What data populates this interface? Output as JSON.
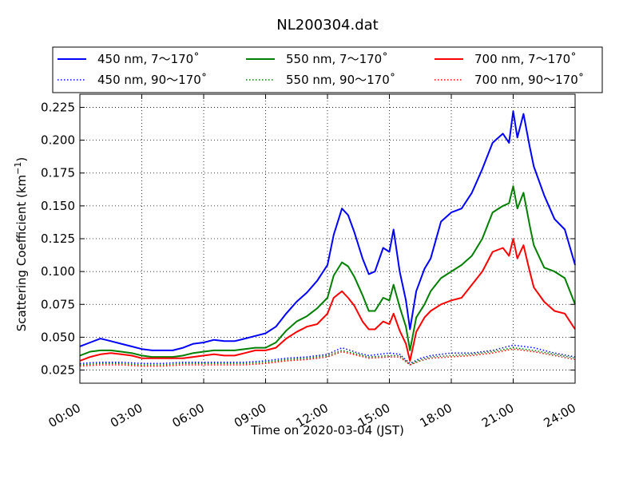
{
  "chart_data": {
    "type": "line",
    "title": "NL200304.dat",
    "xlabel": "Time on 2020-03-04 (JST)",
    "ylabel_main": "Scattering Coefficient (km",
    "ylabel_sup": "−1",
    "ylabel_end": ")",
    "xlim": [
      0,
      24
    ],
    "ylim": [
      0.015,
      0.235
    ],
    "x_ticks": [
      0,
      3,
      6,
      9,
      12,
      15,
      18,
      21,
      24
    ],
    "x_tick_labels": [
      "00:00",
      "03:00",
      "06:00",
      "09:00",
      "12:00",
      "15:00",
      "18:00",
      "21:00",
      "24:00"
    ],
    "y_ticks": [
      0.025,
      0.05,
      0.075,
      0.1,
      0.125,
      0.15,
      0.175,
      0.2,
      0.225
    ],
    "y_tick_labels": [
      "0.025",
      "0.050",
      "0.075",
      "0.100",
      "0.125",
      "0.150",
      "0.175",
      "0.200",
      "0.225"
    ],
    "grid": true,
    "legend_position": "top",
    "series": [
      {
        "name": "450 nm, 7～170˚",
        "color": "#0000ff",
        "style": "solid",
        "x": [
          0,
          0.5,
          1,
          1.5,
          2,
          2.5,
          3,
          3.5,
          4,
          4.5,
          5,
          5.5,
          6,
          6.5,
          7,
          7.5,
          8,
          8.5,
          9,
          9.5,
          10,
          10.5,
          11,
          11.5,
          12,
          12.3,
          12.7,
          13,
          13.3,
          13.7,
          14,
          14.3,
          14.7,
          15,
          15.2,
          15.5,
          15.8,
          16,
          16.3,
          16.7,
          17,
          17.5,
          18,
          18.5,
          19,
          19.5,
          20,
          20.5,
          20.8,
          21,
          21.2,
          21.5,
          21.8,
          22,
          22.5,
          23,
          23.5,
          24
        ],
        "values": [
          0.043,
          0.046,
          0.049,
          0.047,
          0.045,
          0.043,
          0.041,
          0.04,
          0.04,
          0.04,
          0.042,
          0.045,
          0.046,
          0.048,
          0.047,
          0.047,
          0.049,
          0.051,
          0.053,
          0.058,
          0.068,
          0.077,
          0.084,
          0.093,
          0.105,
          0.128,
          0.148,
          0.143,
          0.13,
          0.11,
          0.098,
          0.1,
          0.118,
          0.115,
          0.132,
          0.1,
          0.078,
          0.056,
          0.085,
          0.102,
          0.11,
          0.138,
          0.145,
          0.148,
          0.16,
          0.178,
          0.198,
          0.205,
          0.198,
          0.222,
          0.202,
          0.22,
          0.195,
          0.18,
          0.158,
          0.14,
          0.132,
          0.105
        ]
      },
      {
        "name": "450 nm, 90～170˚",
        "color": "#0000ff",
        "style": "dotted",
        "x": [
          0,
          1,
          2,
          3,
          4,
          5,
          6,
          7,
          8,
          9,
          10,
          11,
          12,
          12.7,
          13.5,
          14,
          15,
          15.5,
          16,
          16.5,
          17,
          18,
          19,
          20,
          21,
          22,
          23,
          24
        ],
        "values": [
          0.03,
          0.031,
          0.031,
          0.03,
          0.03,
          0.031,
          0.031,
          0.031,
          0.031,
          0.032,
          0.034,
          0.035,
          0.037,
          0.042,
          0.038,
          0.036,
          0.038,
          0.037,
          0.03,
          0.034,
          0.036,
          0.038,
          0.038,
          0.04,
          0.044,
          0.042,
          0.038,
          0.035
        ]
      },
      {
        "name": "550 nm, 7～170˚",
        "color": "#008000",
        "style": "solid",
        "x": [
          0,
          0.5,
          1,
          1.5,
          2,
          2.5,
          3,
          3.5,
          4,
          4.5,
          5,
          5.5,
          6,
          6.5,
          7,
          7.5,
          8,
          8.5,
          9,
          9.5,
          10,
          10.5,
          11,
          11.5,
          12,
          12.3,
          12.7,
          13,
          13.3,
          13.7,
          14,
          14.3,
          14.7,
          15,
          15.2,
          15.5,
          15.8,
          16,
          16.3,
          16.7,
          17,
          17.5,
          18,
          18.5,
          19,
          19.5,
          20,
          20.5,
          20.8,
          21,
          21.2,
          21.5,
          21.8,
          22,
          22.5,
          23,
          23.5,
          24
        ],
        "values": [
          0.036,
          0.039,
          0.04,
          0.04,
          0.039,
          0.038,
          0.036,
          0.035,
          0.035,
          0.035,
          0.036,
          0.038,
          0.039,
          0.04,
          0.04,
          0.04,
          0.041,
          0.042,
          0.042,
          0.046,
          0.055,
          0.062,
          0.066,
          0.072,
          0.08,
          0.097,
          0.107,
          0.104,
          0.096,
          0.082,
          0.07,
          0.07,
          0.08,
          0.078,
          0.09,
          0.073,
          0.058,
          0.04,
          0.065,
          0.075,
          0.085,
          0.095,
          0.1,
          0.105,
          0.112,
          0.125,
          0.145,
          0.15,
          0.152,
          0.165,
          0.148,
          0.16,
          0.135,
          0.12,
          0.103,
          0.1,
          0.095,
          0.075
        ]
      },
      {
        "name": "550 nm, 90～170˚",
        "color": "#008000",
        "style": "dotted",
        "x": [
          0,
          1,
          2,
          3,
          4,
          5,
          6,
          7,
          8,
          9,
          10,
          11,
          12,
          12.7,
          13.5,
          14,
          15,
          15.5,
          16,
          16.5,
          17,
          18,
          19,
          20,
          21,
          22,
          23,
          24
        ],
        "values": [
          0.029,
          0.03,
          0.03,
          0.029,
          0.029,
          0.03,
          0.03,
          0.03,
          0.03,
          0.031,
          0.033,
          0.034,
          0.036,
          0.04,
          0.037,
          0.035,
          0.036,
          0.036,
          0.029,
          0.033,
          0.035,
          0.036,
          0.037,
          0.039,
          0.042,
          0.04,
          0.037,
          0.034
        ]
      },
      {
        "name": "700 nm, 7～170˚",
        "color": "#ff0000",
        "style": "solid",
        "x": [
          0,
          0.5,
          1,
          1.5,
          2,
          2.5,
          3,
          3.5,
          4,
          4.5,
          5,
          5.5,
          6,
          6.5,
          7,
          7.5,
          8,
          8.5,
          9,
          9.5,
          10,
          10.5,
          11,
          11.5,
          12,
          12.3,
          12.7,
          13,
          13.3,
          13.7,
          14,
          14.3,
          14.7,
          15,
          15.2,
          15.5,
          15.8,
          16,
          16.3,
          16.7,
          17,
          17.5,
          18,
          18.5,
          19,
          19.5,
          20,
          20.5,
          20.8,
          21,
          21.2,
          21.5,
          21.8,
          22,
          22.5,
          23,
          23.5,
          24
        ],
        "values": [
          0.032,
          0.035,
          0.037,
          0.038,
          0.037,
          0.036,
          0.034,
          0.034,
          0.034,
          0.034,
          0.034,
          0.035,
          0.036,
          0.037,
          0.036,
          0.036,
          0.038,
          0.04,
          0.04,
          0.042,
          0.049,
          0.054,
          0.058,
          0.06,
          0.068,
          0.08,
          0.085,
          0.08,
          0.074,
          0.062,
          0.056,
          0.056,
          0.062,
          0.06,
          0.068,
          0.055,
          0.045,
          0.032,
          0.054,
          0.065,
          0.07,
          0.075,
          0.078,
          0.08,
          0.09,
          0.1,
          0.115,
          0.118,
          0.112,
          0.125,
          0.11,
          0.12,
          0.1,
          0.088,
          0.077,
          0.07,
          0.068,
          0.056
        ]
      },
      {
        "name": "700 nm, 90～170˚",
        "color": "#ff0000",
        "style": "dotted",
        "x": [
          0,
          1,
          2,
          3,
          4,
          5,
          6,
          7,
          8,
          9,
          10,
          11,
          12,
          12.7,
          13.5,
          14,
          15,
          15.5,
          16,
          16.5,
          17,
          18,
          19,
          20,
          21,
          22,
          23,
          24
        ],
        "values": [
          0.028,
          0.029,
          0.029,
          0.028,
          0.028,
          0.029,
          0.029,
          0.029,
          0.029,
          0.03,
          0.032,
          0.033,
          0.035,
          0.039,
          0.036,
          0.034,
          0.035,
          0.035,
          0.029,
          0.032,
          0.034,
          0.035,
          0.036,
          0.038,
          0.041,
          0.039,
          0.036,
          0.033
        ]
      }
    ]
  }
}
